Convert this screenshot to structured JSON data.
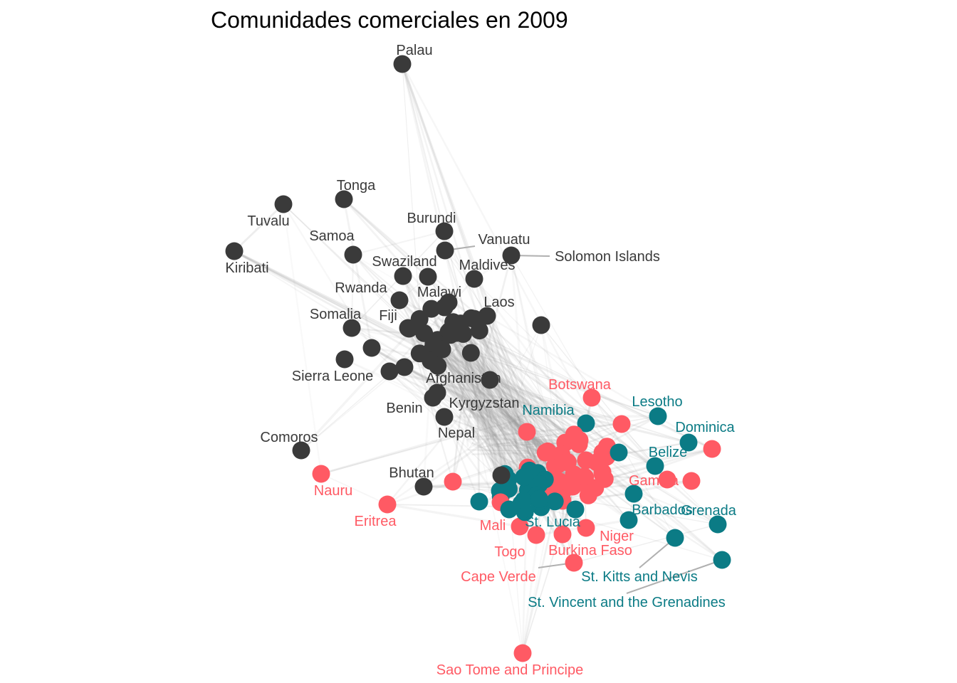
{
  "title": "Comunidades comerciales en 2009",
  "colors": {
    "dark": "#3a3a3a",
    "teal": "#0b7b85",
    "red": "#ff5a64",
    "edge": "#9a9a9a",
    "leader": "#b0b0b0"
  },
  "labels": [
    {
      "text": "Palau",
      "group": "dark"
    },
    {
      "text": "Tonga",
      "group": "dark"
    },
    {
      "text": "Tuvalu",
      "group": "dark"
    },
    {
      "text": "Burundi",
      "group": "dark"
    },
    {
      "text": "Vanuatu",
      "group": "dark"
    },
    {
      "text": "Samoa",
      "group": "dark"
    },
    {
      "text": "Solomon Islands",
      "group": "dark"
    },
    {
      "text": "Kiribati",
      "group": "dark"
    },
    {
      "text": "Swaziland",
      "group": "dark"
    },
    {
      "text": "Maldives",
      "group": "dark"
    },
    {
      "text": "Rwanda",
      "group": "dark"
    },
    {
      "text": "Malawi",
      "group": "dark"
    },
    {
      "text": "Laos",
      "group": "dark"
    },
    {
      "text": "Somalia",
      "group": "dark"
    },
    {
      "text": "Fiji",
      "group": "dark"
    },
    {
      "text": "Sierra Leone",
      "group": "dark"
    },
    {
      "text": "Afghanistan",
      "group": "dark"
    },
    {
      "text": "Kyrgyzstan",
      "group": "dark"
    },
    {
      "text": "Benin",
      "group": "dark"
    },
    {
      "text": "Nepal",
      "group": "dark"
    },
    {
      "text": "Comoros",
      "group": "dark"
    },
    {
      "text": "Bhutan",
      "group": "dark"
    },
    {
      "text": "Botswana",
      "group": "red"
    },
    {
      "text": "Lesotho",
      "group": "teal"
    },
    {
      "text": "Namibia",
      "group": "teal"
    },
    {
      "text": "Dominica",
      "group": "teal"
    },
    {
      "text": "Belize",
      "group": "teal"
    },
    {
      "text": "Gambia",
      "group": "red"
    },
    {
      "text": "Nauru",
      "group": "red"
    },
    {
      "text": "Eritrea",
      "group": "red"
    },
    {
      "text": "Barbados",
      "group": "teal"
    },
    {
      "text": "Grenada",
      "group": "teal"
    },
    {
      "text": "St. Lucia",
      "group": "teal"
    },
    {
      "text": "Mali",
      "group": "red"
    },
    {
      "text": "Niger",
      "group": "red"
    },
    {
      "text": "Togo",
      "group": "red"
    },
    {
      "text": "Burkina Faso",
      "group": "red"
    },
    {
      "text": "St. Kitts and Nevis",
      "group": "teal"
    },
    {
      "text": "Cape Verde",
      "group": "red"
    },
    {
      "text": "St. Vincent and the Grenadines",
      "group": "teal"
    },
    {
      "text": "Sao Tome and Principe",
      "group": "red"
    }
  ]
}
